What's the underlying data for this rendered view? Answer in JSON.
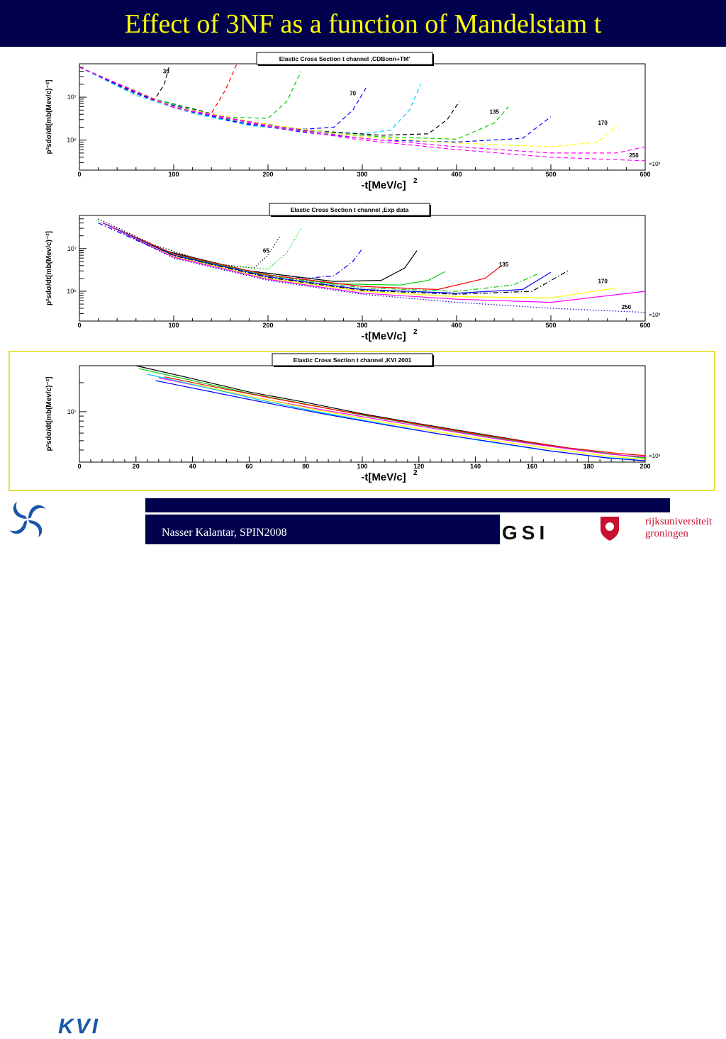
{
  "slide": {
    "title": "Effect of 3NF as a function of Mandelstam t",
    "footer": "Nasser Kalantar, SPIN2008",
    "logos": {
      "kvi": "KVI",
      "gsi": "GSI",
      "rug_line1": "rijksuniversiteit",
      "rug_line2": "groningen"
    }
  },
  "colors": {
    "title_bg": "#00004d",
    "title_text": "#ffff00",
    "highlight_frame": "#e8e040"
  },
  "chart_data": [
    {
      "type": "line",
      "title": "Elastic Cross Section t channel ,CDBonn+TM'",
      "xlabel": "-t[MeV/c]",
      "xlabel_sup": "2",
      "ylabel": "p²sdσ/dt[mb(Mev/c)⁻²]",
      "x_multiplier": "×10³",
      "xlim": [
        0,
        600
      ],
      "ylog": true,
      "ylim": [
        200000,
        60000000
      ],
      "x_ticks": [
        "0",
        "100",
        "200",
        "300",
        "400",
        "500",
        "600"
      ],
      "y_ticks": [
        {
          "label": "10⁶",
          "value": 1000000
        },
        {
          "label": "10⁷",
          "value": 10000000
        }
      ],
      "line_style": "dashed",
      "energy_labels": [
        {
          "text": "30",
          "x": 92,
          "y": 36000000
        },
        {
          "text": "70",
          "x": 290,
          "y": 11000000
        },
        {
          "text": "135",
          "x": 440,
          "y": 4100000
        },
        {
          "text": "170",
          "x": 555,
          "y": 2300000
        },
        {
          "text": "250",
          "x": 588,
          "y": 400000
        }
      ],
      "series": [
        {
          "color": "#000000",
          "x": [
            0,
            30,
            60,
            80,
            90,
            95
          ],
          "y": [
            50000000,
            26000000,
            14000000,
            9000000,
            20000000,
            50000000
          ]
        },
        {
          "color": "#ff0000",
          "x": [
            0,
            40,
            80,
            120,
            140,
            155,
            167
          ],
          "y": [
            50000000,
            20000000,
            8000000,
            4500000,
            4200000,
            15000000,
            60000000
          ]
        },
        {
          "color": "#00cc00",
          "x": [
            0,
            50,
            100,
            150,
            200,
            220,
            235
          ],
          "y": [
            50000000,
            15000000,
            6000000,
            3500000,
            3200000,
            8000000,
            40000000
          ]
        },
        {
          "color": "#0000ff",
          "x": [
            0,
            60,
            120,
            180,
            240,
            270,
            290,
            305
          ],
          "y": [
            50000000,
            12000000,
            4500000,
            2300000,
            1800000,
            2000000,
            5000000,
            18000000
          ]
        },
        {
          "color": "#00ccff",
          "x": [
            0,
            60,
            120,
            180,
            240,
            300,
            330,
            350,
            362
          ],
          "y": [
            50000000,
            11000000,
            4200000,
            2200000,
            1600000,
            1400000,
            1700000,
            5000000,
            20000000
          ]
        },
        {
          "color": "#000000",
          "x": [
            0,
            80,
            160,
            240,
            320,
            370,
            390,
            403
          ],
          "y": [
            50000000,
            9000000,
            3200000,
            1700000,
            1300000,
            1400000,
            3000000,
            8000000
          ]
        },
        {
          "color": "#00cc00",
          "x": [
            0,
            80,
            160,
            240,
            320,
            400,
            440,
            455
          ],
          "y": [
            50000000,
            9000000,
            3000000,
            1600000,
            1200000,
            1050000,
            2500000,
            6000000
          ]
        },
        {
          "color": "#0000ff",
          "x": [
            0,
            80,
            160,
            240,
            320,
            400,
            470,
            500
          ],
          "y": [
            50000000,
            8500000,
            2800000,
            1500000,
            1000000,
            900000,
            1100000,
            3500000
          ]
        },
        {
          "color": "#ffff00",
          "x": [
            0,
            100,
            200,
            300,
            400,
            500,
            550,
            570
          ],
          "y": [
            50000000,
            6000000,
            2300000,
            1200000,
            850000,
            700000,
            900000,
            2200000
          ]
        },
        {
          "color": "#ff00ff",
          "x": [
            0,
            100,
            200,
            300,
            400,
            500,
            570,
            600
          ],
          "y": [
            50000000,
            5800000,
            2200000,
            1100000,
            700000,
            500000,
            500000,
            700000
          ]
        },
        {
          "color": "#ff00ff",
          "x": [
            0,
            100,
            200,
            300,
            400,
            500,
            600
          ],
          "y": [
            50000000,
            5700000,
            2100000,
            1000000,
            600000,
            400000,
            330000
          ]
        }
      ]
    },
    {
      "type": "line",
      "title": "Elastic Cross Section t channel ,Exp data",
      "xlabel": "-t[MeV/c]",
      "xlabel_sup": "2",
      "ylabel": "p²sdσ/dt[mb(Mev/c)⁻²]",
      "x_multiplier": "×10³",
      "xlim": [
        0,
        600
      ],
      "ylog": true,
      "ylim": [
        200000,
        60000000
      ],
      "x_ticks": [
        "0",
        "100",
        "200",
        "300",
        "400",
        "500",
        "600"
      ],
      "y_ticks": [
        {
          "label": "10⁶",
          "value": 1000000
        },
        {
          "label": "10⁷",
          "value": 10000000
        }
      ],
      "line_style": "mixed",
      "energy_labels": [
        {
          "text": "65",
          "x": 198,
          "y": 8000000
        },
        {
          "text": "135",
          "x": 450,
          "y": 3800000
        },
        {
          "text": "170",
          "x": 555,
          "y": 1550000
        },
        {
          "text": "250",
          "x": 580,
          "y": 380000
        }
      ],
      "series": [
        {
          "color": "#000000",
          "dash": "dotted",
          "x": [
            20,
            80,
            140,
            185,
            200,
            213
          ],
          "y": [
            50000000,
            12000000,
            4500000,
            3500000,
            7000000,
            20000000
          ]
        },
        {
          "color": "#00cc00",
          "dash": "dotted",
          "x": [
            20,
            80,
            140,
            200,
            220,
            235
          ],
          "y": [
            45000000,
            11000000,
            4200000,
            3300000,
            8000000,
            30000000
          ]
        },
        {
          "color": "#0000ff",
          "dash": "dashdot",
          "x": [
            20,
            80,
            160,
            240,
            270,
            290,
            300
          ],
          "y": [
            40000000,
            10000000,
            3500000,
            2000000,
            2300000,
            5000000,
            10000000
          ]
        },
        {
          "color": "#000000",
          "dash": "solid",
          "x": [
            25,
            90,
            180,
            270,
            320,
            345,
            358
          ],
          "y": [
            40000000,
            9000000,
            3000000,
            1700000,
            1800000,
            3500000,
            9000000
          ]
        },
        {
          "color": "#00cc00",
          "dash": "solid",
          "x": [
            25,
            90,
            180,
            270,
            340,
            370,
            388
          ],
          "y": [
            40000000,
            8500000,
            2800000,
            1500000,
            1400000,
            1800000,
            2900000
          ]
        },
        {
          "color": "#ff0000",
          "dash": "solid",
          "x": [
            25,
            100,
            200,
            300,
            380,
            430,
            448
          ],
          "y": [
            40000000,
            7500000,
            2400000,
            1300000,
            1100000,
            2000000,
            4000000
          ]
        },
        {
          "color": "#00cc00",
          "dash": "dashdot",
          "x": [
            25,
            100,
            200,
            300,
            400,
            460,
            485
          ],
          "y": [
            40000000,
            7200000,
            2300000,
            1200000,
            1000000,
            1400000,
            2500000
          ]
        },
        {
          "color": "#0000ff",
          "dash": "solid",
          "x": [
            25,
            100,
            200,
            300,
            400,
            470,
            500
          ],
          "y": [
            40000000,
            7000000,
            2200000,
            1100000,
            900000,
            1100000,
            2800000
          ]
        },
        {
          "color": "#000000",
          "dash": "dashdot",
          "x": [
            25,
            100,
            200,
            300,
            400,
            480,
            520
          ],
          "y": [
            40000000,
            6800000,
            2100000,
            1050000,
            850000,
            1000000,
            3200000
          ]
        },
        {
          "color": "#ffff00",
          "dash": "solid",
          "x": [
            25,
            100,
            200,
            300,
            400,
            500,
            570
          ],
          "y": [
            40000000,
            6500000,
            2000000,
            1000000,
            750000,
            700000,
            1200000
          ]
        },
        {
          "color": "#ff00ff",
          "dash": "solid",
          "x": [
            25,
            100,
            200,
            300,
            400,
            500,
            600
          ],
          "y": [
            40000000,
            6300000,
            1900000,
            900000,
            650000,
            550000,
            1000000
          ]
        },
        {
          "color": "#0000cc",
          "dash": "dotted",
          "x": [
            25,
            100,
            200,
            300,
            400,
            500,
            600
          ],
          "y": [
            40000000,
            6000000,
            1800000,
            850000,
            550000,
            400000,
            320000
          ]
        }
      ]
    },
    {
      "type": "line",
      "title": "Elastic Cross Section t channel ,KVI 2001",
      "xlabel": "-t[MeV/c]",
      "xlabel_sup": "2",
      "ylabel": "p²sdσ/dt[mb(Mev/c)⁻²]",
      "x_multiplier": "×10³",
      "xlim": [
        0,
        200
      ],
      "ylog": true,
      "ylim": [
        3000000,
        30000000
      ],
      "x_ticks": [
        "0",
        "20",
        "40",
        "60",
        "80",
        "100",
        "120",
        "140",
        "160",
        "180",
        "200"
      ],
      "y_ticks": [
        {
          "label": "10⁷",
          "value": 10000000
        }
      ],
      "line_style": "solid",
      "series": [
        {
          "color": "#000000",
          "x": [
            20,
            40,
            60,
            80,
            100,
            120,
            140,
            160,
            180,
            200
          ],
          "y": [
            30000000,
            22000000,
            16000000,
            12500000,
            9500000,
            7500000,
            6000000,
            4800000,
            3900000,
            3300000
          ]
        },
        {
          "color": "#00cc00",
          "x": [
            21,
            40,
            60,
            80,
            100,
            120,
            140,
            160,
            180,
            200
          ],
          "y": [
            28000000,
            21000000,
            15500000,
            12000000,
            9200000,
            7300000,
            5800000,
            4700000,
            3900000,
            3300000
          ]
        },
        {
          "color": "#ff0000",
          "x": [
            30,
            50,
            70,
            90,
            110,
            130,
            150,
            170,
            190,
            200
          ],
          "y": [
            23000000,
            17500000,
            13500000,
            10500000,
            8300000,
            6600000,
            5300000,
            4300000,
            3700000,
            3500000
          ]
        },
        {
          "color": "#ff00ff",
          "x": [
            28,
            48,
            68,
            88,
            108,
            128,
            148,
            168,
            188,
            200
          ],
          "y": [
            22500000,
            17000000,
            13000000,
            10200000,
            8100000,
            6500000,
            5200000,
            4300000,
            3600000,
            3400000
          ]
        },
        {
          "color": "#ffff00",
          "x": [
            25,
            45,
            65,
            85,
            105,
            125,
            145,
            165,
            185,
            200
          ],
          "y": [
            24000000,
            18000000,
            13500000,
            10300000,
            8000000,
            6300000,
            5100000,
            4200000,
            3500000,
            3200000
          ]
        },
        {
          "color": "#00ccff",
          "x": [
            24,
            44,
            64,
            84,
            104,
            124,
            144,
            164,
            184,
            200
          ],
          "y": [
            24500000,
            18000000,
            13200000,
            10000000,
            7800000,
            6100000,
            4900000,
            4000000,
            3400000,
            3100000
          ]
        },
        {
          "color": "#0000ff",
          "x": [
            27,
            47,
            67,
            87,
            107,
            127,
            147,
            167,
            187,
            200
          ],
          "y": [
            21000000,
            16000000,
            12200000,
            9400000,
            7400000,
            5900000,
            4800000,
            3900000,
            3300000,
            3100000
          ]
        }
      ]
    }
  ]
}
